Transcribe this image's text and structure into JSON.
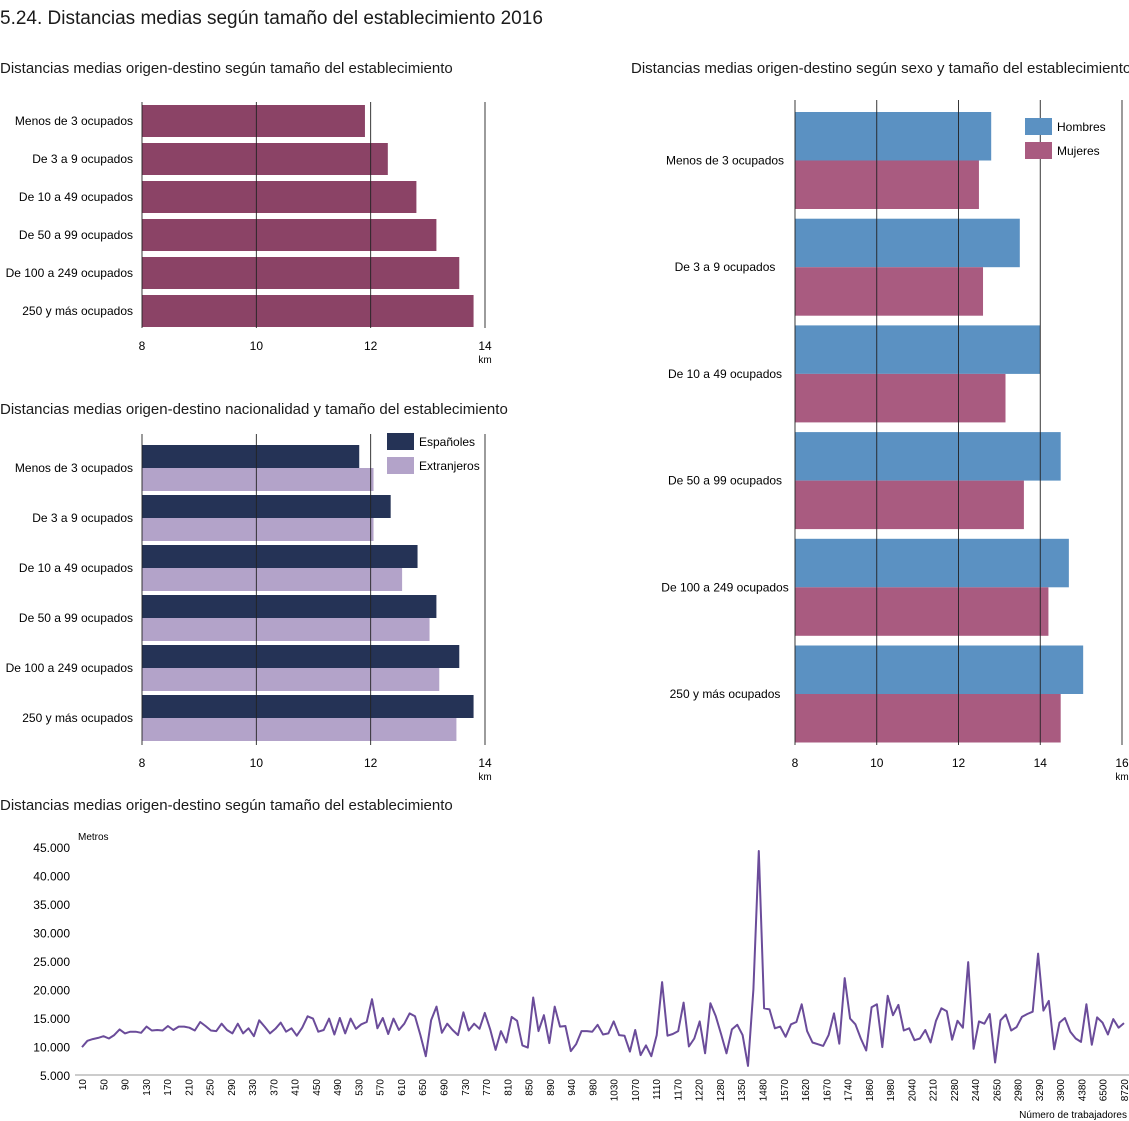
{
  "title": "5.24. Distancias medias según tamaño del establecimiento 2016",
  "colors": {
    "chart1_bar": "#8b4366",
    "espanoles": "#253356",
    "extranjeros": "#b3a3c9",
    "hombres": "#5b91c2",
    "mujeres": "#a95b80",
    "line": "#6b4c9a"
  },
  "chart_data": [
    {
      "id": "c1",
      "type": "bar",
      "orientation": "horizontal",
      "title": "Distancias medias origen-destino según tamaño del establecimiento",
      "categories": [
        "Menos de 3 ocupados",
        "De 3 a  9 ocupados",
        "De 10 a 49 ocupados",
        "De 50 a 99 ocupados",
        "De 100 a 249 ocupados",
        "250 y más ocupados"
      ],
      "series": [
        {
          "values": [
            11.9,
            12.3,
            12.8,
            13.15,
            13.55,
            13.8
          ]
        }
      ],
      "xlim": [
        8,
        14
      ],
      "ticks": [
        "8",
        "10",
        "12",
        "14"
      ],
      "unit": "km",
      "grid": true
    },
    {
      "id": "c2",
      "type": "bar",
      "orientation": "horizontal",
      "title": "Distancias medias origen-destino nacionalidad y tamaño del establecimiento",
      "categories": [
        "Menos de 3 ocupados",
        "De 3 a  9 ocupados",
        "De 10 a 49 ocupados",
        "De 50 a 99 ocupados",
        "De 100 a 249 ocupados",
        "250 y más ocupados"
      ],
      "series": [
        {
          "name": "Españoles",
          "values": [
            11.8,
            12.35,
            12.82,
            13.15,
            13.55,
            13.8
          ]
        },
        {
          "name": "Extranjeros",
          "values": [
            12.05,
            12.05,
            12.55,
            13.03,
            13.2,
            13.5
          ]
        }
      ],
      "xlim": [
        8,
        14
      ],
      "ticks": [
        "8",
        "10",
        "12",
        "14"
      ],
      "unit": "km",
      "legend": "top-right",
      "grid": true
    },
    {
      "id": "c3",
      "type": "bar",
      "orientation": "horizontal",
      "title": "Distancias medias origen-destino según sexo y tamaño del establecimiento",
      "categories": [
        "Menos de 3 ocupados",
        "De 3 a  9 ocupados",
        "De 10 a 49 ocupados",
        "De 50 a 99 ocupados",
        "De 100 a 249 ocupados",
        "250 y más ocupados"
      ],
      "series": [
        {
          "name": "Hombres",
          "values": [
            12.8,
            13.5,
            14.0,
            14.5,
            14.7,
            15.05
          ]
        },
        {
          "name": "Mujeres",
          "values": [
            12.5,
            12.6,
            13.15,
            13.6,
            14.2,
            14.5
          ]
        }
      ],
      "xlim": [
        8,
        16
      ],
      "ticks": [
        "8",
        "10",
        "12",
        "14",
        "16"
      ],
      "unit": "km",
      "legend": "top-right",
      "grid": true
    },
    {
      "id": "c4",
      "type": "line",
      "title": "Distancias medias origen-destino según tamaño del establecimiento",
      "ylabel": "Metros",
      "xlabel": "Número de trabajadores",
      "ylim": [
        5000,
        45000
      ],
      "yticks": [
        "45.000",
        "40.000",
        "35.000",
        "30.000",
        "25.000",
        "20.000",
        "15.000",
        "10.000",
        "5.000"
      ],
      "xticks": [
        "10",
        "50",
        "90",
        "130",
        "170",
        "210",
        "250",
        "290",
        "330",
        "370",
        "410",
        "450",
        "490",
        "530",
        "570",
        "610",
        "650",
        "690",
        "730",
        "770",
        "810",
        "850",
        "890",
        "940",
        "980",
        "1030",
        "1070",
        "1110",
        "1170",
        "1220",
        "1280",
        "1350",
        "1480",
        "1570",
        "1620",
        "1670",
        "1740",
        "1860",
        "1980",
        "2040",
        "2210",
        "2280",
        "2440",
        "2650",
        "2980",
        "3290",
        "3900",
        "4380",
        "6500",
        "8720"
      ],
      "values": [
        9900,
        11000,
        11300,
        11500,
        11800,
        11400,
        12000,
        13000,
        12300,
        12600,
        12600,
        12400,
        13500,
        12800,
        12900,
        12800,
        13600,
        12900,
        13500,
        13500,
        13300,
        12800,
        14300,
        13600,
        12800,
        12700,
        14000,
        12900,
        12300,
        14000,
        12300,
        13200,
        11800,
        14600,
        13500,
        12300,
        13100,
        14200,
        12600,
        13200,
        11900,
        13300,
        15300,
        14900,
        12600,
        12900,
        14900,
        12100,
        15000,
        12300,
        14900,
        13100,
        13900,
        14300,
        18300,
        13200,
        15000,
        12200,
        14900,
        12900,
        14000,
        15800,
        15300,
        12000,
        8300,
        14600,
        17000,
        12400,
        14000,
        12900,
        12000,
        16000,
        12800,
        14000,
        13100,
        15900,
        13000,
        9400,
        12700,
        10700,
        15200,
        14500,
        10200,
        9800,
        18600,
        12700,
        15500,
        10600,
        17000,
        13500,
        13600,
        9200,
        10400,
        12700,
        12700,
        12600,
        13800,
        12100,
        12300,
        14400,
        12000,
        11900,
        9100,
        12900,
        8500,
        10200,
        8300,
        12000,
        21300,
        11900,
        12200,
        12700,
        17700,
        10000,
        11400,
        14400,
        8800,
        17600,
        15300,
        12100,
        8800,
        13000,
        13800,
        12000,
        6600,
        20000,
        44300,
        16700,
        16500,
        13200,
        13500,
        11700,
        13900,
        14300,
        17400,
        12700,
        10700,
        10400,
        10100,
        12000,
        15800,
        10500,
        22000,
        14900,
        13900,
        11400,
        9300,
        16900,
        17400,
        9900,
        18900,
        15500,
        17300,
        12800,
        13200,
        11100,
        11400,
        12900,
        10700,
        14500,
        16700,
        16200,
        11200,
        14500,
        13300,
        24800,
        9600,
        14400,
        14000,
        15700,
        7200,
        14600,
        15600,
        12800,
        13400,
        15200,
        15700,
        16100,
        26300,
        16300,
        18000,
        9500,
        14200,
        15000,
        12600,
        11400,
        10800,
        17400,
        10300,
        15100,
        14200,
        12100,
        14800,
        13300,
        14100
      ]
    }
  ]
}
